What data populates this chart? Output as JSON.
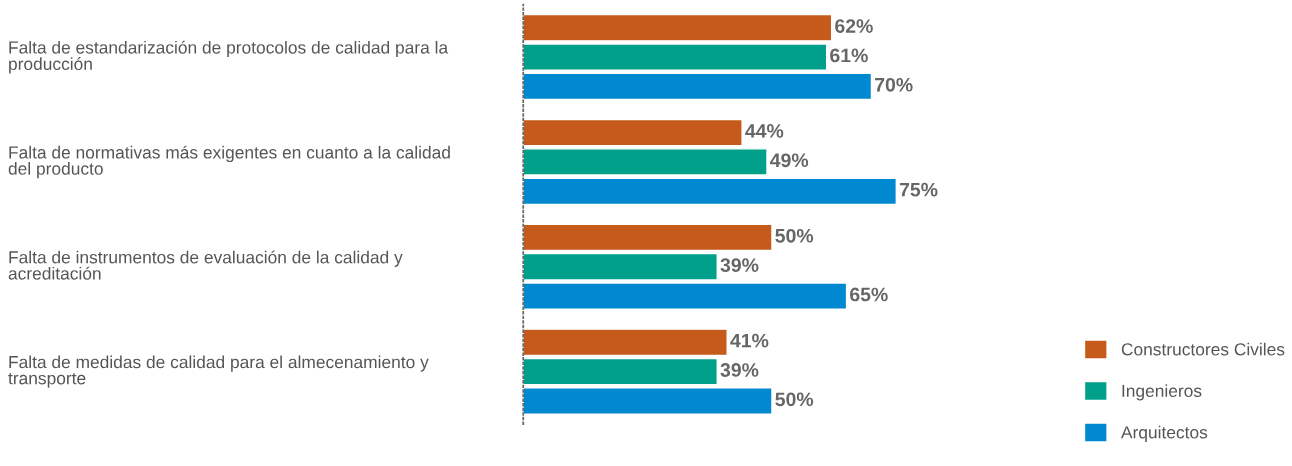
{
  "chart_data": {
    "type": "bar",
    "orientation": "horizontal",
    "categories": [
      "Falta de estandarización de protocolos de calidad para la\nproducción",
      "Falta de normativas más exigentes en cuanto a la calidad\ndel producto",
      "Falta de instrumentos de evaluación de la calidad y\nacreditación",
      "Falta de medidas de calidad para el almecenamiento y\ntransporte"
    ],
    "series": [
      {
        "name": "Constructores Civiles",
        "color": "#c55a1a",
        "values": [
          62,
          44,
          50,
          41
        ],
        "value_labels": [
          "62%",
          "44%",
          "50%",
          "41%"
        ]
      },
      {
        "name": "Ingenieros",
        "color": "#00a08a",
        "values": [
          61,
          49,
          39,
          39
        ],
        "value_labels": [
          "61%",
          "49%",
          "39%",
          "39%"
        ]
      },
      {
        "name": "Arquitectos",
        "color": "#0088d1",
        "values": [
          70,
          75,
          65,
          50
        ],
        "value_labels": [
          "70%",
          "75%",
          "65%",
          "50%"
        ]
      }
    ],
    "legend": "bottom right"
  }
}
